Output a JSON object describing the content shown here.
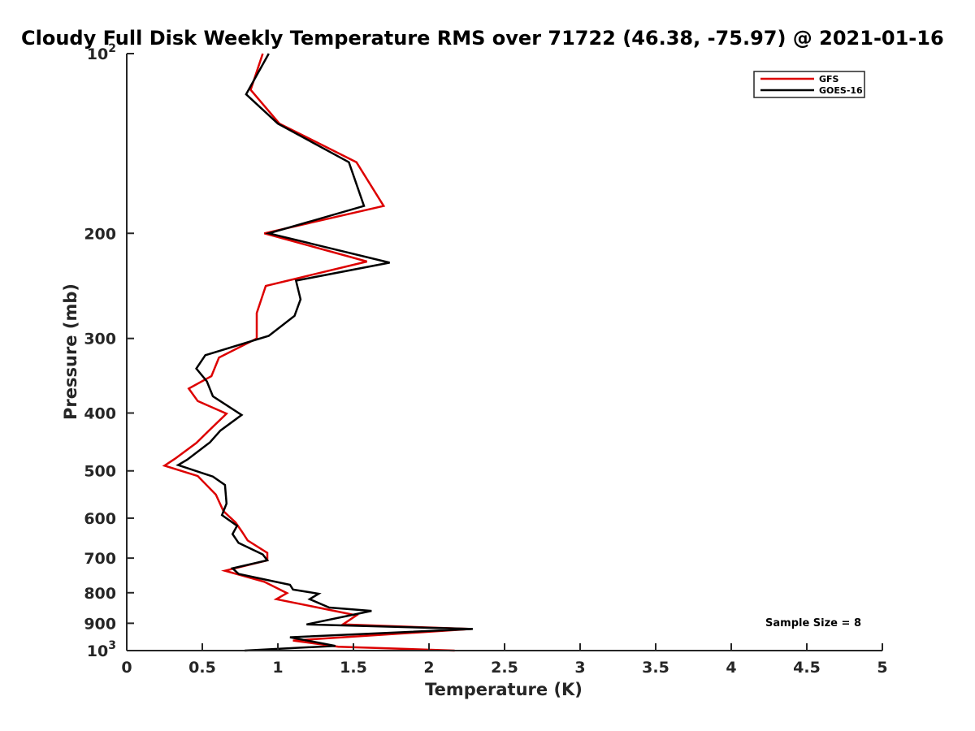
{
  "chart_data": {
    "type": "line",
    "title": "Cloudy Full Disk Weekly Temperature RMS over 71722 (46.38, -75.97) @ 2021-01-16",
    "xlabel": "Temperature (K)",
    "ylabel": "Pressure (mb)",
    "xlim": [
      0,
      5
    ],
    "ylim": [
      1000,
      100
    ],
    "yscale": "log",
    "y_reversed": true,
    "x_ticks": [
      "0",
      "0.5",
      "1",
      "1.5",
      "2",
      "2.5",
      "3",
      "3.5",
      "4",
      "4.5",
      "5"
    ],
    "y_tick_values": [
      100,
      200,
      300,
      400,
      500,
      600,
      700,
      800,
      900,
      1000
    ],
    "y_ticks": [
      {
        "base": "10",
        "exp": "2"
      },
      {
        "label": "200"
      },
      {
        "label": "300"
      },
      {
        "label": "400"
      },
      {
        "label": "500"
      },
      {
        "label": "600"
      },
      {
        "label": "700"
      },
      {
        "label": "800"
      },
      {
        "label": "900"
      },
      {
        "base": "10",
        "exp": "3"
      }
    ],
    "grid": false,
    "legend_position": "top-right",
    "annotation": "Sample Size = 8",
    "series": [
      {
        "name": "GFS",
        "color": "#dd0000",
        "points": [
          [
            0.9,
            100
          ],
          [
            0.82,
            115
          ],
          [
            1.01,
            131
          ],
          [
            1.52,
            152
          ],
          [
            1.7,
            180
          ],
          [
            0.91,
            200
          ],
          [
            1.59,
            223
          ],
          [
            0.92,
            245
          ],
          [
            0.86,
            272
          ],
          [
            0.86,
            300
          ],
          [
            0.61,
            323
          ],
          [
            0.56,
            347
          ],
          [
            0.41,
            364
          ],
          [
            0.47,
            382
          ],
          [
            0.66,
            401
          ],
          [
            0.54,
            429
          ],
          [
            0.46,
            449
          ],
          [
            0.32,
            477
          ],
          [
            0.25,
            490
          ],
          [
            0.47,
            510
          ],
          [
            0.59,
            548
          ],
          [
            0.64,
            584
          ],
          [
            0.72,
            610
          ],
          [
            0.76,
            631
          ],
          [
            0.8,
            654
          ],
          [
            0.93,
            686
          ],
          [
            0.93,
            706
          ],
          [
            0.65,
            735
          ],
          [
            0.91,
            767
          ],
          [
            1.06,
            801
          ],
          [
            0.99,
            820
          ],
          [
            1.52,
            873
          ],
          [
            1.43,
            904
          ],
          [
            2.28,
            920
          ],
          [
            1.1,
            962
          ],
          [
            1.4,
            985
          ],
          [
            2.17,
            1000
          ]
        ]
      },
      {
        "name": "GOES-16",
        "color": "#000000",
        "points": [
          [
            0.94,
            100
          ],
          [
            0.79,
            117
          ],
          [
            1.0,
            131
          ],
          [
            1.47,
            152
          ],
          [
            1.57,
            180
          ],
          [
            0.94,
            200
          ],
          [
            1.74,
            224
          ],
          [
            1.12,
            240
          ],
          [
            1.15,
            258
          ],
          [
            1.11,
            275
          ],
          [
            0.94,
            297
          ],
          [
            0.52,
            320
          ],
          [
            0.46,
            337
          ],
          [
            0.53,
            354
          ],
          [
            0.57,
            375
          ],
          [
            0.76,
            403
          ],
          [
            0.62,
            428
          ],
          [
            0.55,
            448
          ],
          [
            0.4,
            479
          ],
          [
            0.34,
            489
          ],
          [
            0.57,
            511
          ],
          [
            0.65,
            528
          ],
          [
            0.66,
            567
          ],
          [
            0.63,
            593
          ],
          [
            0.73,
            618
          ],
          [
            0.7,
            638
          ],
          [
            0.74,
            660
          ],
          [
            0.9,
            690
          ],
          [
            0.93,
            706
          ],
          [
            0.7,
            728
          ],
          [
            0.74,
            744
          ],
          [
            1.08,
            776
          ],
          [
            1.1,
            790
          ],
          [
            1.27,
            803
          ],
          [
            1.21,
            820
          ],
          [
            1.34,
            847
          ],
          [
            1.62,
            858
          ],
          [
            1.19,
            904
          ],
          [
            2.29,
            920
          ],
          [
            1.08,
            950
          ],
          [
            1.38,
            982
          ],
          [
            0.78,
            1000
          ]
        ]
      }
    ]
  }
}
